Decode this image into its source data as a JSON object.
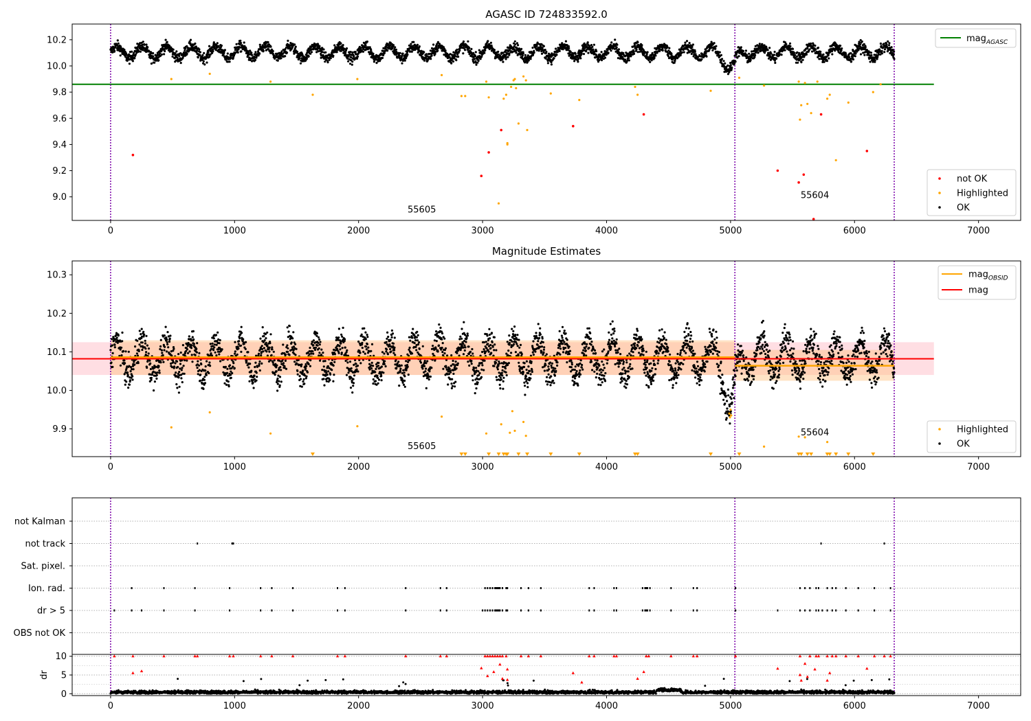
{
  "chart_data": [
    {
      "type": "scatter",
      "title": "AGASC ID 724833592.0",
      "xlim": [
        -310,
        7340
      ],
      "ylim": [
        8.82,
        10.32
      ],
      "xticks": [
        0,
        1000,
        2000,
        3000,
        4000,
        5000,
        6000,
        7000
      ],
      "yticks": [
        9.0,
        9.2,
        9.4,
        9.6,
        9.8,
        10.0,
        10.2
      ],
      "vlines": [
        0,
        5035,
        6320
      ],
      "hline": {
        "y": 9.86,
        "x0": -310,
        "x1": 6640,
        "color": "#008000"
      },
      "annotations": [
        {
          "text": "55605",
          "x": 2510,
          "y": 8.88
        },
        {
          "text": "55604",
          "x": 5680,
          "y": 8.99
        }
      ],
      "legend_top": [
        {
          "label": "mag",
          "sub": "AGASC",
          "color": "#008000"
        }
      ],
      "legend_bottom": [
        {
          "label": "not OK",
          "color": "#ff0000"
        },
        {
          "label": "Highlighted",
          "color": "#ffa500"
        },
        {
          "label": "OK",
          "color": "#000000"
        }
      ],
      "ok_model": {
        "n": 3200,
        "x0": 0,
        "x1": 6320,
        "base": 10.085,
        "amp": 0.045,
        "period": 200,
        "noise": 0.02,
        "dip": {
          "x": 5000,
          "depth": 0.12,
          "width": 60
        }
      },
      "highlighted": [
        [
          490,
          9.9
        ],
        [
          800,
          9.94
        ],
        [
          1290,
          9.88
        ],
        [
          1630,
          9.78
        ],
        [
          1990,
          9.9
        ],
        [
          2670,
          9.93
        ],
        [
          2830,
          9.77
        ],
        [
          2860,
          9.77
        ],
        [
          3030,
          9.88
        ],
        [
          3050,
          9.76
        ],
        [
          3130,
          8.95
        ],
        [
          3170,
          9.75
        ],
        [
          3190,
          9.78
        ],
        [
          3200,
          9.4
        ],
        [
          3200,
          9.41
        ],
        [
          3230,
          9.84
        ],
        [
          3250,
          9.89
        ],
        [
          3260,
          9.9
        ],
        [
          3270,
          9.83
        ],
        [
          3290,
          9.56
        ],
        [
          3330,
          9.92
        ],
        [
          3350,
          9.89
        ],
        [
          3360,
          9.51
        ],
        [
          3550,
          9.79
        ],
        [
          3780,
          9.74
        ],
        [
          4230,
          9.84
        ],
        [
          4250,
          9.78
        ],
        [
          4840,
          9.81
        ],
        [
          5070,
          9.91
        ],
        [
          5270,
          9.85
        ],
        [
          5550,
          9.88
        ],
        [
          5560,
          9.59
        ],
        [
          5570,
          9.7
        ],
        [
          5600,
          9.87
        ],
        [
          5620,
          9.71
        ],
        [
          5650,
          9.64
        ],
        [
          5700,
          9.88
        ],
        [
          5780,
          9.75
        ],
        [
          5800,
          9.78
        ],
        [
          5850,
          9.28
        ],
        [
          5950,
          9.72
        ],
        [
          6150,
          9.8
        ],
        [
          6210,
          9.86
        ]
      ],
      "not_ok": [
        [
          180,
          9.32
        ],
        [
          2990,
          9.16
        ],
        [
          3050,
          9.34
        ],
        [
          3150,
          9.51
        ],
        [
          3730,
          9.54
        ],
        [
          4300,
          9.63
        ],
        [
          5380,
          9.2
        ],
        [
          5550,
          9.11
        ],
        [
          5590,
          9.17
        ],
        [
          5670,
          8.83
        ],
        [
          5730,
          9.63
        ],
        [
          6100,
          9.35
        ]
      ]
    },
    {
      "type": "scatter",
      "title": "Magnitude Estimates",
      "xlim": [
        -310,
        7340
      ],
      "ylim": [
        9.828,
        10.336
      ],
      "xticks": [
        0,
        1000,
        2000,
        3000,
        4000,
        5000,
        6000,
        7000
      ],
      "yticks": [
        9.9,
        10.0,
        10.1,
        10.2,
        10.3
      ],
      "vlines": [
        0,
        5035,
        6320
      ],
      "mag": {
        "y": 10.082,
        "band": [
          10.04,
          10.125
        ],
        "x0": -310,
        "x1": 6640,
        "color": "#ff0000"
      },
      "obsid": [
        {
          "x0": 0,
          "x1": 5035,
          "y": 10.086,
          "band": [
            10.04,
            10.13
          ]
        },
        {
          "x0": 5035,
          "x1": 6320,
          "y": 10.064,
          "band": [
            10.025,
            10.105
          ]
        }
      ],
      "annotations": [
        {
          "text": "55605",
          "x": 2510,
          "y": 9.848
        },
        {
          "text": "55604",
          "x": 5680,
          "y": 9.883
        }
      ],
      "legend_top": [
        {
          "label": "mag",
          "sub": "OBSID",
          "color": "#ffa500"
        },
        {
          "label": "mag",
          "sub": "",
          "color": "#ff0000"
        }
      ],
      "legend_bottom": [
        {
          "label": "Highlighted",
          "color": "#ffa500"
        },
        {
          "label": "OK",
          "color": "#000000"
        }
      ],
      "ok_model": {
        "n": 3200,
        "x0": 0,
        "x1": 6320,
        "base": 10.085,
        "amp": 0.045,
        "period": 200,
        "noise": 0.02,
        "dip": {
          "x": 5000,
          "depth": 0.12,
          "width": 60
        }
      },
      "highlighted": [
        [
          490,
          9.904
        ],
        [
          800,
          9.943
        ],
        [
          1290,
          9.888
        ],
        [
          1990,
          9.907
        ],
        [
          2670,
          9.932
        ],
        [
          3030,
          9.888
        ],
        [
          3150,
          9.912
        ],
        [
          3220,
          9.89
        ],
        [
          3240,
          9.946
        ],
        [
          3260,
          9.895
        ],
        [
          3330,
          9.918
        ],
        [
          3350,
          9.882
        ],
        [
          5270,
          9.854
        ],
        [
          5550,
          9.88
        ],
        [
          5600,
          9.878
        ],
        [
          5780,
          9.866
        ],
        [
          4990,
          9.94
        ],
        [
          4995,
          9.93
        ],
        [
          5000,
          9.95
        ],
        [
          5005,
          9.935
        ]
      ],
      "below_range": [
        1630,
        2830,
        2860,
        3050,
        3130,
        3170,
        3190,
        3200,
        3290,
        3360,
        3550,
        3780,
        4230,
        4250,
        4840,
        5070,
        5550,
        5570,
        5620,
        5650,
        5780,
        5800,
        5850,
        5950,
        6150
      ]
    },
    {
      "type": "scatter",
      "xlim": [
        -310,
        7340
      ],
      "xticks": [
        0,
        1000,
        2000,
        3000,
        4000,
        5000,
        6000,
        7000
      ],
      "vlines": [
        0,
        5035,
        6320
      ],
      "categories": [
        "not Kalman",
        "not track",
        "Sat. pixel.",
        "Ion. rad.",
        "dr > 5",
        "OBS not OK"
      ],
      "flags": {
        "not track": [
          700,
          980,
          990,
          5730,
          6240
        ],
        "Ion. rad.": [
          170,
          430,
          680,
          960,
          1210,
          1300,
          1470,
          1830,
          1890,
          2380,
          2660,
          2710,
          3020,
          3040,
          3060,
          3080,
          3100,
          3110,
          3120,
          3130,
          3140,
          3160,
          3190,
          3200,
          3310,
          3370,
          3470,
          3860,
          3900,
          4060,
          4080,
          4290,
          4310,
          4320,
          4330,
          4350,
          4520,
          4700,
          4730,
          5040,
          5560,
          5600,
          5640,
          5690,
          5710,
          5780,
          5820,
          5850,
          5930,
          6030,
          6160,
          6290
        ],
        "dr > 5": [
          30,
          170,
          250,
          430,
          680,
          960,
          1210,
          1300,
          1470,
          1830,
          1890,
          2380,
          2660,
          2710,
          3000,
          3020,
          3040,
          3060,
          3080,
          3100,
          3110,
          3120,
          3130,
          3140,
          3160,
          3190,
          3200,
          3310,
          3370,
          3470,
          3860,
          3900,
          4060,
          4080,
          4290,
          4310,
          4320,
          4330,
          4350,
          4520,
          4700,
          4730,
          5040,
          5380,
          5560,
          5600,
          5640,
          5690,
          5710,
          5740,
          5780,
          5820,
          5850,
          5930,
          6030,
          6160,
          6290
        ]
      }
    },
    {
      "type": "scatter",
      "ylabel": "dr",
      "xlim": [
        -310,
        7340
      ],
      "ylim": [
        -0.5,
        10.5
      ],
      "xticks": [
        0,
        1000,
        2000,
        3000,
        4000,
        5000,
        6000,
        7000
      ],
      "yticks": [
        0,
        5,
        10
      ],
      "vlines": [
        0,
        5035,
        6320
      ],
      "ok_model": {
        "n": 3000,
        "x0": 0,
        "x1": 6320,
        "base": 0.4,
        "noise": 0.3
      },
      "high_dr": [
        [
          30,
          10
        ],
        [
          180,
          10
        ],
        [
          430,
          10
        ],
        [
          680,
          10
        ],
        [
          700,
          10
        ],
        [
          960,
          10
        ],
        [
          990,
          10
        ],
        [
          1210,
          10
        ],
        [
          1300,
          10
        ],
        [
          1470,
          10
        ],
        [
          1830,
          10
        ],
        [
          1890,
          10
        ],
        [
          2380,
          10
        ],
        [
          2660,
          10
        ],
        [
          2710,
          10
        ],
        [
          3020,
          10
        ],
        [
          3040,
          10
        ],
        [
          3060,
          10
        ],
        [
          3080,
          10
        ],
        [
          3100,
          10
        ],
        [
          3120,
          10
        ],
        [
          3140,
          10
        ],
        [
          3160,
          10
        ],
        [
          3190,
          10
        ],
        [
          3310,
          10
        ],
        [
          3370,
          10
        ],
        [
          3470,
          10
        ],
        [
          3860,
          10
        ],
        [
          3900,
          10
        ],
        [
          4060,
          10
        ],
        [
          4080,
          10
        ],
        [
          4320,
          10
        ],
        [
          4340,
          10
        ],
        [
          4520,
          10
        ],
        [
          4700,
          10
        ],
        [
          4730,
          10
        ],
        [
          5040,
          10
        ],
        [
          5560,
          10
        ],
        [
          5640,
          10
        ],
        [
          5690,
          10
        ],
        [
          5710,
          10
        ],
        [
          5780,
          10
        ],
        [
          5820,
          10
        ],
        [
          5850,
          10
        ],
        [
          5930,
          10
        ],
        [
          6030,
          10
        ],
        [
          6160,
          10
        ],
        [
          6240,
          10
        ],
        [
          6290,
          10
        ],
        [
          180,
          5.5
        ],
        [
          250,
          6
        ],
        [
          2990,
          6.8
        ],
        [
          3040,
          4.7
        ],
        [
          3090,
          5.8
        ],
        [
          3140,
          7.8
        ],
        [
          3160,
          4
        ],
        [
          3200,
          3.7
        ],
        [
          3200,
          6.5
        ],
        [
          3730,
          5.5
        ],
        [
          3800,
          3
        ],
        [
          4300,
          5.8
        ],
        [
          4250,
          4
        ],
        [
          5380,
          6.7
        ],
        [
          5560,
          5
        ],
        [
          5570,
          3.5
        ],
        [
          5600,
          8
        ],
        [
          5620,
          4.5
        ],
        [
          5680,
          6.5
        ],
        [
          5780,
          3.5
        ],
        [
          5800,
          5.5
        ],
        [
          6100,
          6.7
        ]
      ]
    }
  ]
}
